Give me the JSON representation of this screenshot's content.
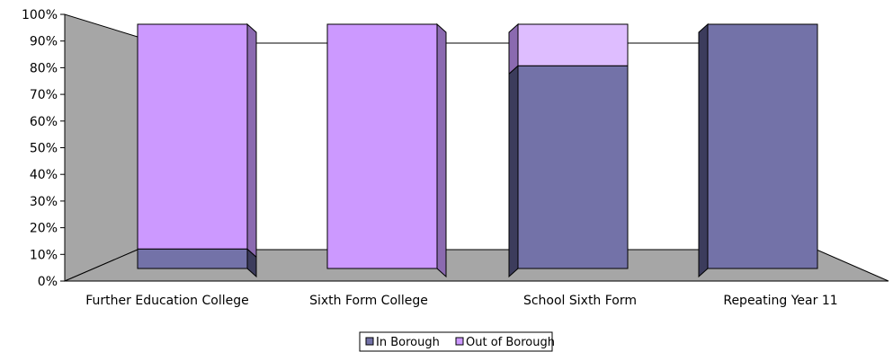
{
  "chart_data": {
    "type": "bar",
    "stacked": true,
    "percent": true,
    "categories": [
      "Further Education College",
      "Sixth Form College",
      "School Sixth Form",
      "Repeating Year 11"
    ],
    "series": [
      {
        "name": "In Borough",
        "values": [
          8,
          0,
          83,
          100
        ],
        "color": "#7372A8"
      },
      {
        "name": "Out of Borough",
        "values": [
          92,
          100,
          17,
          0
        ],
        "color": "#CC99FF"
      }
    ],
    "y_ticks": [
      "0%",
      "10%",
      "20%",
      "30%",
      "40%",
      "50%",
      "60%",
      "70%",
      "80%",
      "90%",
      "100%"
    ],
    "ylim": [
      0,
      100
    ],
    "legend": "bottom",
    "grid": false,
    "colors": {
      "wall": "#A6A6A6",
      "floor": "#A6A6A6",
      "in_borough_side": "#3C3C5C",
      "out_borough_side": "#8B6AB0"
    }
  }
}
